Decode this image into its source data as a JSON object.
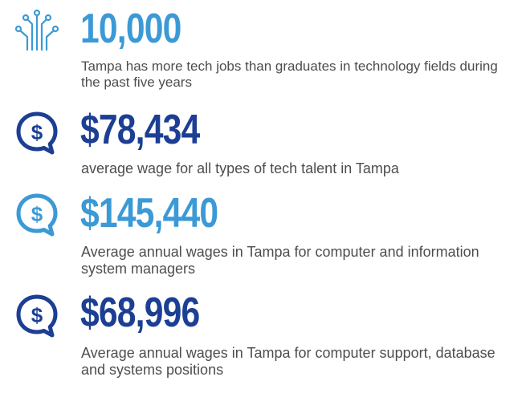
{
  "colors": {
    "light_blue": "#3b9ad6",
    "navy": "#1c3f94",
    "text": "#4d4d4d"
  },
  "stats": [
    {
      "icon": "circuit-icon",
      "value": "10,000",
      "description": "Tampa has more tech jobs than graduates in technology fields during the past five years"
    },
    {
      "icon": "dollar-speech-bubble-icon",
      "value": "$78,434",
      "description": "average wage for all types of tech talent in Tampa"
    },
    {
      "icon": "dollar-speech-bubble-icon",
      "value": "$145,440",
      "description": "Average annual wages in Tampa for computer and information system managers"
    },
    {
      "icon": "dollar-speech-bubble-icon",
      "value": "$68,996",
      "description": "Average annual wages in Tampa for computer support, database and systems positions"
    }
  ]
}
